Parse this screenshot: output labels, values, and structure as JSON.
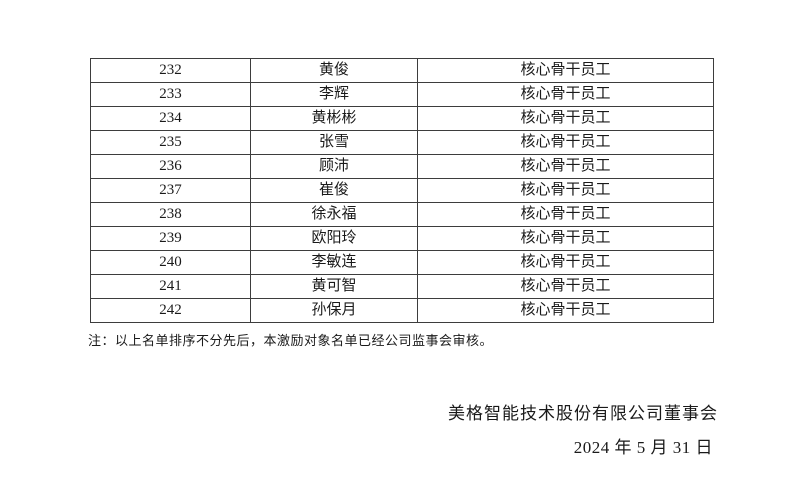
{
  "document": {
    "table": {
      "rows": [
        {
          "no": "232",
          "name": "黄俊",
          "category": "核心骨干员工"
        },
        {
          "no": "233",
          "name": "李辉",
          "category": "核心骨干员工"
        },
        {
          "no": "234",
          "name": "黄彬彬",
          "category": "核心骨干员工"
        },
        {
          "no": "235",
          "name": "张雪",
          "category": "核心骨干员工"
        },
        {
          "no": "236",
          "name": "顾沛",
          "category": "核心骨干员工"
        },
        {
          "no": "237",
          "name": "崔俊",
          "category": "核心骨干员工"
        },
        {
          "no": "238",
          "name": "徐永福",
          "category": "核心骨干员工"
        },
        {
          "no": "239",
          "name": "欧阳玲",
          "category": "核心骨干员工"
        },
        {
          "no": "240",
          "name": "李敏连",
          "category": "核心骨干员工"
        },
        {
          "no": "241",
          "name": "黄可智",
          "category": "核心骨干员工"
        },
        {
          "no": "242",
          "name": "孙保月",
          "category": "核心骨干员工"
        }
      ]
    },
    "note": "注：以上名单排序不分先后，本激励对象名单已经公司监事会审核。",
    "signature": "美格智能技术股份有限公司董事会",
    "date": "2024 年 5 月 31 日",
    "colors": {
      "text": "#1a1a1a",
      "table_border": "#3d3d3d",
      "background": "#ffffff"
    }
  }
}
